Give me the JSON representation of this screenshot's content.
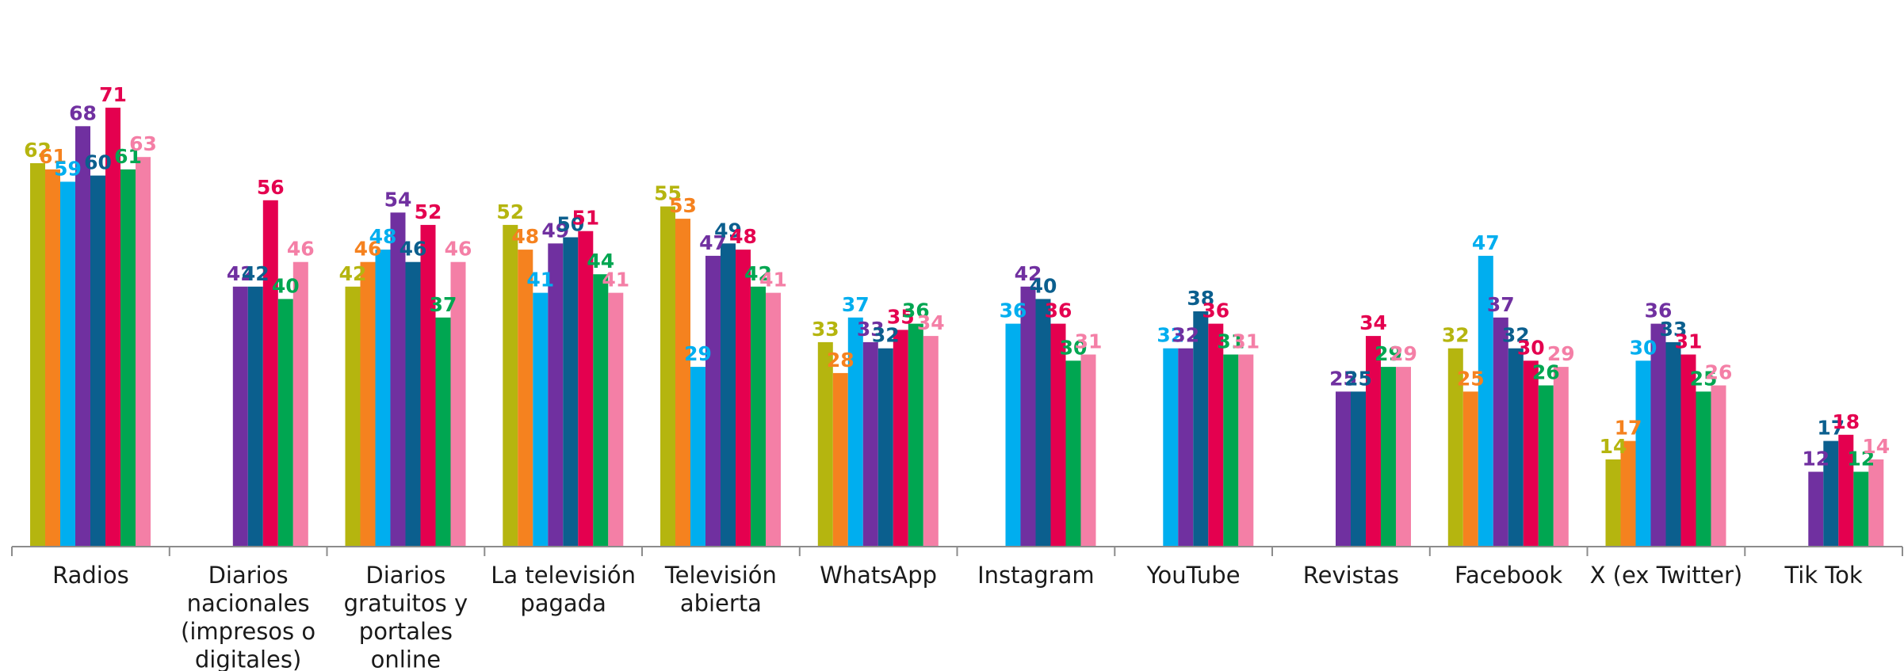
{
  "chart_data": {
    "type": "bar",
    "title": "",
    "xlabel": "",
    "ylabel": "",
    "ylim": [
      0,
      78
    ],
    "grid": false,
    "legend": "none",
    "categories": [
      "Radios",
      "Diarios nacionales (impresos o digitales)",
      "Diarios gratuitos y portales online",
      "La televisión pagada",
      "Televisión abierta",
      "WhatsApp",
      "Instagram",
      "YouTube",
      "Revistas",
      "Facebook",
      "X (ex Twitter)",
      "Tik Tok"
    ],
    "category_lines": [
      [
        "Radios"
      ],
      [
        "Diarios",
        "nacionales",
        "(impresos o",
        "digitales)"
      ],
      [
        "Diarios",
        "gratuitos y",
        "portales",
        "online"
      ],
      [
        "La televisión",
        "pagada"
      ],
      [
        "Televisión",
        "abierta"
      ],
      [
        "WhatsApp"
      ],
      [
        "Instagram"
      ],
      [
        "YouTube"
      ],
      [
        "Revistas"
      ],
      [
        "Facebook"
      ],
      [
        "X (ex Twitter)"
      ],
      [
        "Tik Tok"
      ]
    ],
    "series": [
      {
        "color": "#b5b50f",
        "values": [
          62,
          null,
          42,
          52,
          55,
          33,
          null,
          null,
          null,
          32,
          14,
          null
        ]
      },
      {
        "color": "#f5821f",
        "values": [
          61,
          null,
          46,
          48,
          53,
          28,
          null,
          null,
          null,
          25,
          17,
          null
        ]
      },
      {
        "color": "#00aeef",
        "values": [
          59,
          null,
          48,
          41,
          29,
          37,
          36,
          32,
          null,
          47,
          30,
          null
        ]
      },
      {
        "color": "#7030a0",
        "values": [
          68,
          42,
          54,
          49,
          47,
          33,
          42,
          32,
          25,
          37,
          36,
          12
        ]
      },
      {
        "color": "#0b5f8e",
        "values": [
          60,
          42,
          46,
          50,
          49,
          32,
          40,
          38,
          25,
          32,
          33,
          17
        ]
      },
      {
        "color": "#e4004f",
        "values": [
          71,
          56,
          52,
          51,
          48,
          35,
          36,
          36,
          34,
          30,
          31,
          18
        ]
      },
      {
        "color": "#00a651",
        "values": [
          61,
          40,
          37,
          44,
          42,
          36,
          30,
          31,
          29,
          26,
          25,
          12
        ]
      },
      {
        "color": "#f47fa6",
        "values": [
          63,
          46,
          46,
          41,
          41,
          34,
          31,
          31,
          29,
          29,
          26,
          14
        ]
      }
    ],
    "axis_color": "#8c8c8c"
  }
}
